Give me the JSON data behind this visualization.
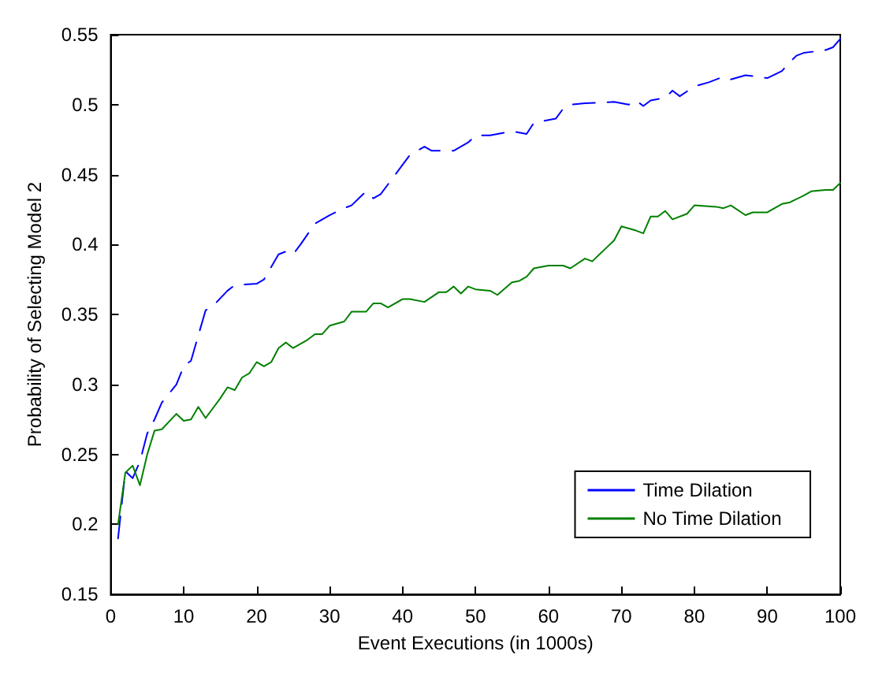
{
  "chart_data": {
    "type": "line",
    "xlabel": "Event Executions (in 1000s)",
    "ylabel": "Probability of Selecting Model 2",
    "xlim": [
      0,
      100
    ],
    "xticks": [
      0,
      10,
      20,
      30,
      40,
      50,
      60,
      70,
      80,
      90,
      100
    ],
    "ylim": [
      0.15,
      0.55
    ],
    "yticks": [
      0.15,
      0.2,
      0.25,
      0.3,
      0.35,
      0.4,
      0.45,
      0.5,
      0.55
    ],
    "grid": false,
    "legend": "bottom right",
    "marker": "none",
    "series": [
      {
        "name": "Time Dilation",
        "color": "#0000ff",
        "line_style": "dashed",
        "x": [
          1,
          2,
          3,
          4,
          5,
          6,
          7,
          9,
          10,
          11,
          12,
          13,
          14,
          16,
          17,
          20,
          21,
          23,
          24,
          25,
          26,
          28,
          30,
          32,
          33,
          35,
          36,
          37,
          38,
          40,
          41,
          43,
          44,
          47,
          49,
          50,
          52,
          55,
          56,
          57,
          58,
          61,
          62,
          63,
          65,
          69,
          71,
          72,
          73,
          74,
          76,
          77,
          78,
          80,
          82,
          84,
          85,
          87,
          90,
          92,
          93,
          94,
          95,
          98,
          99,
          100
        ],
        "values": [
          0.19,
          0.238,
          0.233,
          0.245,
          0.265,
          0.275,
          0.287,
          0.3,
          0.313,
          0.317,
          0.335,
          0.353,
          0.356,
          0.367,
          0.371,
          0.372,
          0.375,
          0.393,
          0.395,
          0.393,
          0.4,
          0.415,
          0.421,
          0.426,
          0.428,
          0.438,
          0.433,
          0.436,
          0.443,
          0.457,
          0.464,
          0.47,
          0.467,
          0.467,
          0.473,
          0.478,
          0.478,
          0.481,
          0.48,
          0.479,
          0.487,
          0.49,
          0.497,
          0.5,
          0.501,
          0.502,
          0.5,
          0.503,
          0.499,
          0.503,
          0.505,
          0.51,
          0.506,
          0.513,
          0.516,
          0.52,
          0.518,
          0.521,
          0.519,
          0.524,
          0.53,
          0.535,
          0.537,
          0.539,
          0.541,
          0.547
        ]
      },
      {
        "name": "No Time Dilation",
        "color": "#008000",
        "line_style": "solid",
        "x": [
          1,
          2,
          3,
          4,
          5,
          6,
          7,
          9,
          10,
          11,
          12,
          13,
          15,
          16,
          17,
          18,
          19,
          20,
          21,
          22,
          23,
          24,
          25,
          27,
          28,
          29,
          30,
          32,
          33,
          35,
          36,
          37,
          38,
          40,
          41,
          43,
          45,
          46,
          47,
          48,
          49,
          50,
          52,
          53,
          55,
          56,
          57,
          58,
          60,
          62,
          63,
          65,
          66,
          68,
          69,
          70,
          72,
          73,
          74,
          75,
          76,
          77,
          79,
          80,
          83,
          84,
          85,
          87,
          88,
          90,
          92,
          93,
          95,
          96,
          98,
          99,
          100
        ],
        "values": [
          0.2,
          0.237,
          0.242,
          0.228,
          0.25,
          0.267,
          0.268,
          0.279,
          0.274,
          0.275,
          0.284,
          0.276,
          0.29,
          0.298,
          0.296,
          0.305,
          0.308,
          0.316,
          0.313,
          0.316,
          0.326,
          0.33,
          0.326,
          0.332,
          0.336,
          0.336,
          0.342,
          0.345,
          0.352,
          0.352,
          0.358,
          0.358,
          0.355,
          0.361,
          0.361,
          0.359,
          0.366,
          0.366,
          0.37,
          0.365,
          0.37,
          0.368,
          0.367,
          0.364,
          0.373,
          0.374,
          0.377,
          0.383,
          0.385,
          0.385,
          0.383,
          0.39,
          0.388,
          0.398,
          0.403,
          0.413,
          0.41,
          0.408,
          0.42,
          0.42,
          0.424,
          0.418,
          0.422,
          0.428,
          0.427,
          0.426,
          0.428,
          0.421,
          0.423,
          0.423,
          0.429,
          0.43,
          0.435,
          0.438,
          0.439,
          0.439,
          0.444
        ]
      }
    ]
  }
}
